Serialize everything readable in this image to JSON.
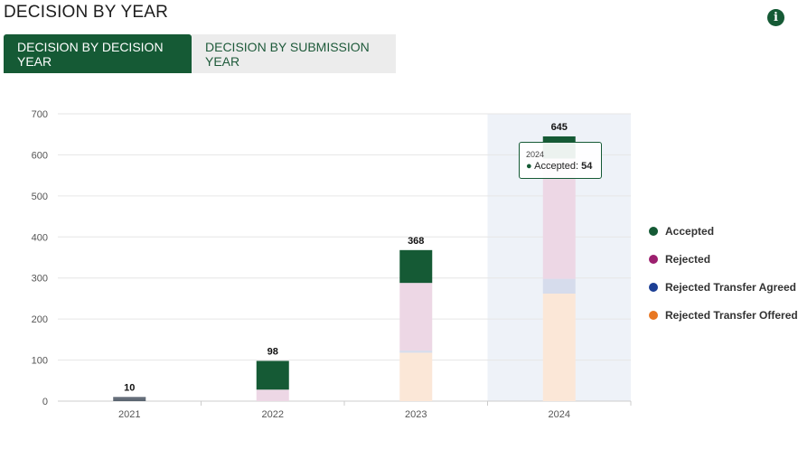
{
  "header": {
    "title": "DECISION BY YEAR",
    "info_icon": "info-icon"
  },
  "tabs": [
    {
      "label": "DECISION BY DECISION YEAR",
      "active": true
    },
    {
      "label": "DECISION BY SUBMISSION YEAR",
      "active": false
    }
  ],
  "chart_data": {
    "type": "bar",
    "stacked": true,
    "categories": [
      "2021",
      "2022",
      "2023",
      "2024"
    ],
    "series": [
      {
        "name": "Rejected Transfer Offered",
        "color": "#e87722",
        "values": [
          0,
          0,
          118,
          262
        ]
      },
      {
        "name": "Rejected Transfer Agreed",
        "color": "#1c3f94",
        "values": [
          5,
          0,
          5,
          36
        ]
      },
      {
        "name": "Rejected",
        "color": "#9c1f6e",
        "values": [
          4,
          28,
          165,
          293
        ]
      },
      {
        "name": "Accepted",
        "color": "#155a35",
        "values": [
          1,
          70,
          80,
          54
        ]
      }
    ],
    "totals": [
      10,
      98,
      368,
      645
    ],
    "ylim": [
      0,
      700
    ],
    "yticks": [
      0,
      100,
      200,
      300,
      400,
      500,
      600,
      700
    ],
    "grid": true,
    "legend_position": "right",
    "highlighted_category": "2024",
    "highlighted_series": "Accepted",
    "colors": {
      "axis": "#cccccc",
      "grid": "#e6e6e6",
      "highlight_band": "#eef2f8"
    }
  },
  "legend": [
    {
      "label": "Accepted",
      "color": "#155a35"
    },
    {
      "label": "Rejected",
      "color": "#9c1f6e"
    },
    {
      "label": "Rejected Transfer Agreed",
      "color": "#1c3f94"
    },
    {
      "label": "Rejected Transfer Offered",
      "color": "#e87722"
    }
  ],
  "tooltip": {
    "category": "2024",
    "series": "Accepted",
    "label": "Accepted:",
    "value": "54"
  }
}
